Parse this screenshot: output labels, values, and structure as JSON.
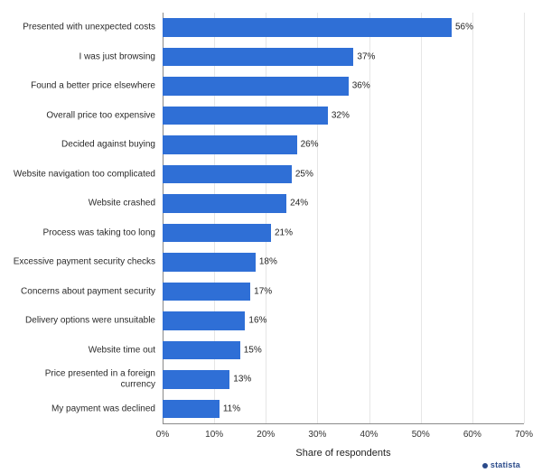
{
  "chart": {
    "type": "bar-horizontal",
    "background_color": "#ffffff",
    "grid_color": "#e6e6e6",
    "axis_color": "#8a8a8a",
    "bar_color": "#2f6fd6",
    "label_fontsize": 10,
    "value_fontsize": 10,
    "xlim": [
      0,
      70
    ],
    "xtick_step": 10,
    "x_ticks": [
      "0%",
      "10%",
      "20%",
      "30%",
      "40%",
      "50%",
      "60%",
      "70%"
    ],
    "x_axis_label": "Share of respondents",
    "items": [
      {
        "label": "Presented with unexpected costs",
        "value": 56,
        "value_label": "56%"
      },
      {
        "label": "I was just browsing",
        "value": 37,
        "value_label": "37%"
      },
      {
        "label": "Found a better price elsewhere",
        "value": 36,
        "value_label": "36%"
      },
      {
        "label": "Overall price too expensive",
        "value": 32,
        "value_label": "32%"
      },
      {
        "label": "Decided against buying",
        "value": 26,
        "value_label": "26%"
      },
      {
        "label": "Website navigation too complicated",
        "value": 25,
        "value_label": "25%"
      },
      {
        "label": "Website crashed",
        "value": 24,
        "value_label": "24%"
      },
      {
        "label": "Process was taking too long",
        "value": 21,
        "value_label": "21%"
      },
      {
        "label": "Excessive payment security checks",
        "value": 18,
        "value_label": "18%"
      },
      {
        "label": "Concerns about payment security",
        "value": 17,
        "value_label": "17%"
      },
      {
        "label": "Delivery options were unsuitable",
        "value": 16,
        "value_label": "16%"
      },
      {
        "label": "Website time out",
        "value": 15,
        "value_label": "15%"
      },
      {
        "label": "Price presented in a foreign currency",
        "value": 13,
        "value_label": "13%"
      },
      {
        "label": "My payment was declined",
        "value": 11,
        "value_label": "11%"
      }
    ],
    "brand": "statista"
  }
}
